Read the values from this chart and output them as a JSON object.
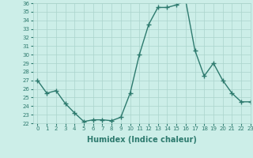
{
  "x": [
    0,
    1,
    2,
    3,
    4,
    5,
    6,
    7,
    8,
    9,
    10,
    11,
    12,
    13,
    14,
    15,
    16,
    17,
    18,
    19,
    20,
    21,
    22,
    23
  ],
  "y": [
    27.0,
    25.5,
    25.8,
    24.3,
    23.2,
    22.2,
    22.4,
    22.4,
    22.3,
    22.7,
    25.5,
    30.0,
    33.5,
    35.5,
    35.5,
    35.8,
    36.3,
    30.5,
    27.5,
    29.0,
    27.0,
    25.5,
    24.5,
    24.5
  ],
  "line_color": "#2d7a6e",
  "marker": "+",
  "marker_size": 4,
  "marker_linewidth": 1.0,
  "xlabel": "Humidex (Indice chaleur)",
  "xlabel_fontsize": 7,
  "ylim": [
    22,
    36
  ],
  "xlim": [
    -0.5,
    23
  ],
  "ytick_step": 1,
  "tick_fontsize": 5,
  "bg_color": "#cceee8",
  "grid_color": "#aad4cc",
  "line_width": 1.0
}
